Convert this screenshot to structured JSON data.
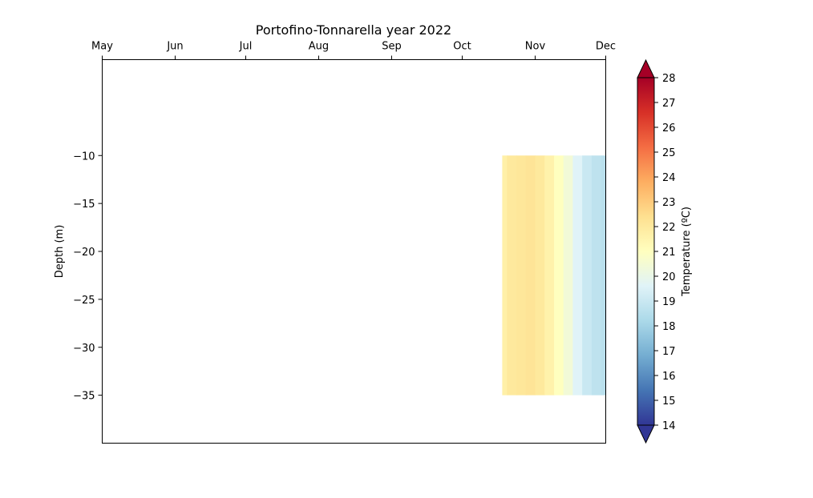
{
  "chart_data": {
    "type": "heatmap",
    "title": "Portofino-Tonnarella year 2022",
    "xlabel": "",
    "ylabel": "Depth (m)",
    "x_axis_position": "top",
    "x_range": [
      "2022-05-01",
      "2022-12-01"
    ],
    "x_tick_labels": [
      "May",
      "Jun",
      "Jul",
      "Aug",
      "Sep",
      "Oct",
      "Nov",
      "Dec"
    ],
    "x_tick_dates": [
      "2022-05-01",
      "2022-06-01",
      "2022-07-01",
      "2022-08-01",
      "2022-09-01",
      "2022-10-01",
      "2022-11-01",
      "2022-12-01"
    ],
    "ylim": [
      -40,
      0
    ],
    "y_ticks": [
      -10,
      -15,
      -20,
      -25,
      -30,
      -35
    ],
    "y_tick_labels": [
      "−10",
      "−15",
      "−20",
      "−25",
      "−30",
      "−35"
    ],
    "depth_range": [
      -35,
      -10
    ],
    "dates": [
      "2022-10-18",
      "2022-10-22",
      "2022-10-26",
      "2022-10-30",
      "2022-11-03",
      "2022-11-07",
      "2022-11-11",
      "2022-11-15",
      "2022-11-19",
      "2022-11-23",
      "2022-11-27",
      "2022-12-01"
    ],
    "temperatures": [
      21.7,
      22.0,
      22.1,
      22.2,
      22.0,
      21.6,
      21.0,
      20.4,
      19.6,
      19.0,
      18.7,
      18.6
    ],
    "colorbar": {
      "label": "Temperature (ºC)",
      "range": [
        14,
        28
      ],
      "ticks": [
        14,
        15,
        16,
        17,
        18,
        19,
        20,
        21,
        22,
        23,
        24,
        25,
        26,
        27,
        28
      ],
      "tick_labels": [
        "14",
        "15",
        "16",
        "17",
        "18",
        "19",
        "20",
        "21",
        "22",
        "23",
        "24",
        "25",
        "26",
        "27",
        "28"
      ],
      "colormap": "RdYlBu_r",
      "colors": [
        "#313695",
        "#4575b4",
        "#74add1",
        "#abd9e9",
        "#e0f3f8",
        "#ffffbf",
        "#fee090",
        "#fdae61",
        "#f46d43",
        "#d73027",
        "#a50026"
      ],
      "extend": "both"
    },
    "grid": false
  }
}
